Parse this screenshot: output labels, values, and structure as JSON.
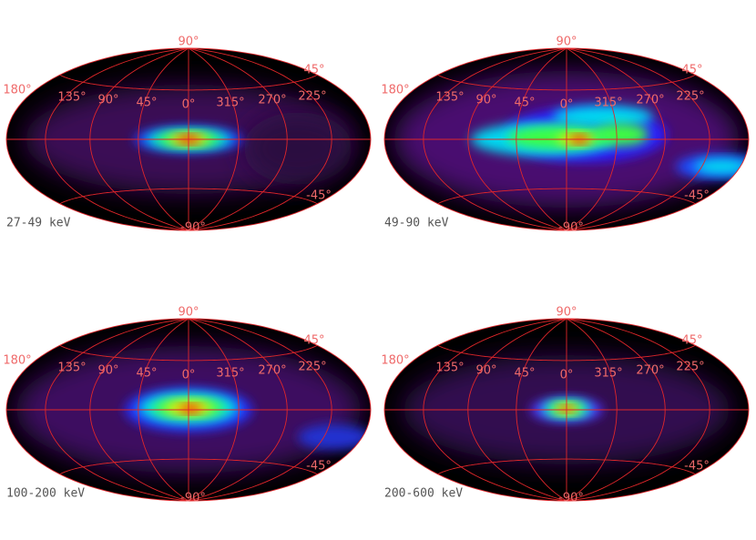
{
  "panels": [
    {
      "label": "27-49 keV"
    },
    {
      "label": "49-90 keV"
    },
    {
      "label": "100-200 keV"
    },
    {
      "label": "200-600 keV"
    }
  ],
  "grid_labels": {
    "north_pole": "90°",
    "lon_180": "180°",
    "lon_135": "135°",
    "lon_90": "90°",
    "lon_45": "45°",
    "lon_0": "0°",
    "lon_315": "315°",
    "lon_270": "270°",
    "lon_225": "225°",
    "lat_45": "45°",
    "lat_m45": "-45°",
    "south_pole": "-90°"
  }
}
